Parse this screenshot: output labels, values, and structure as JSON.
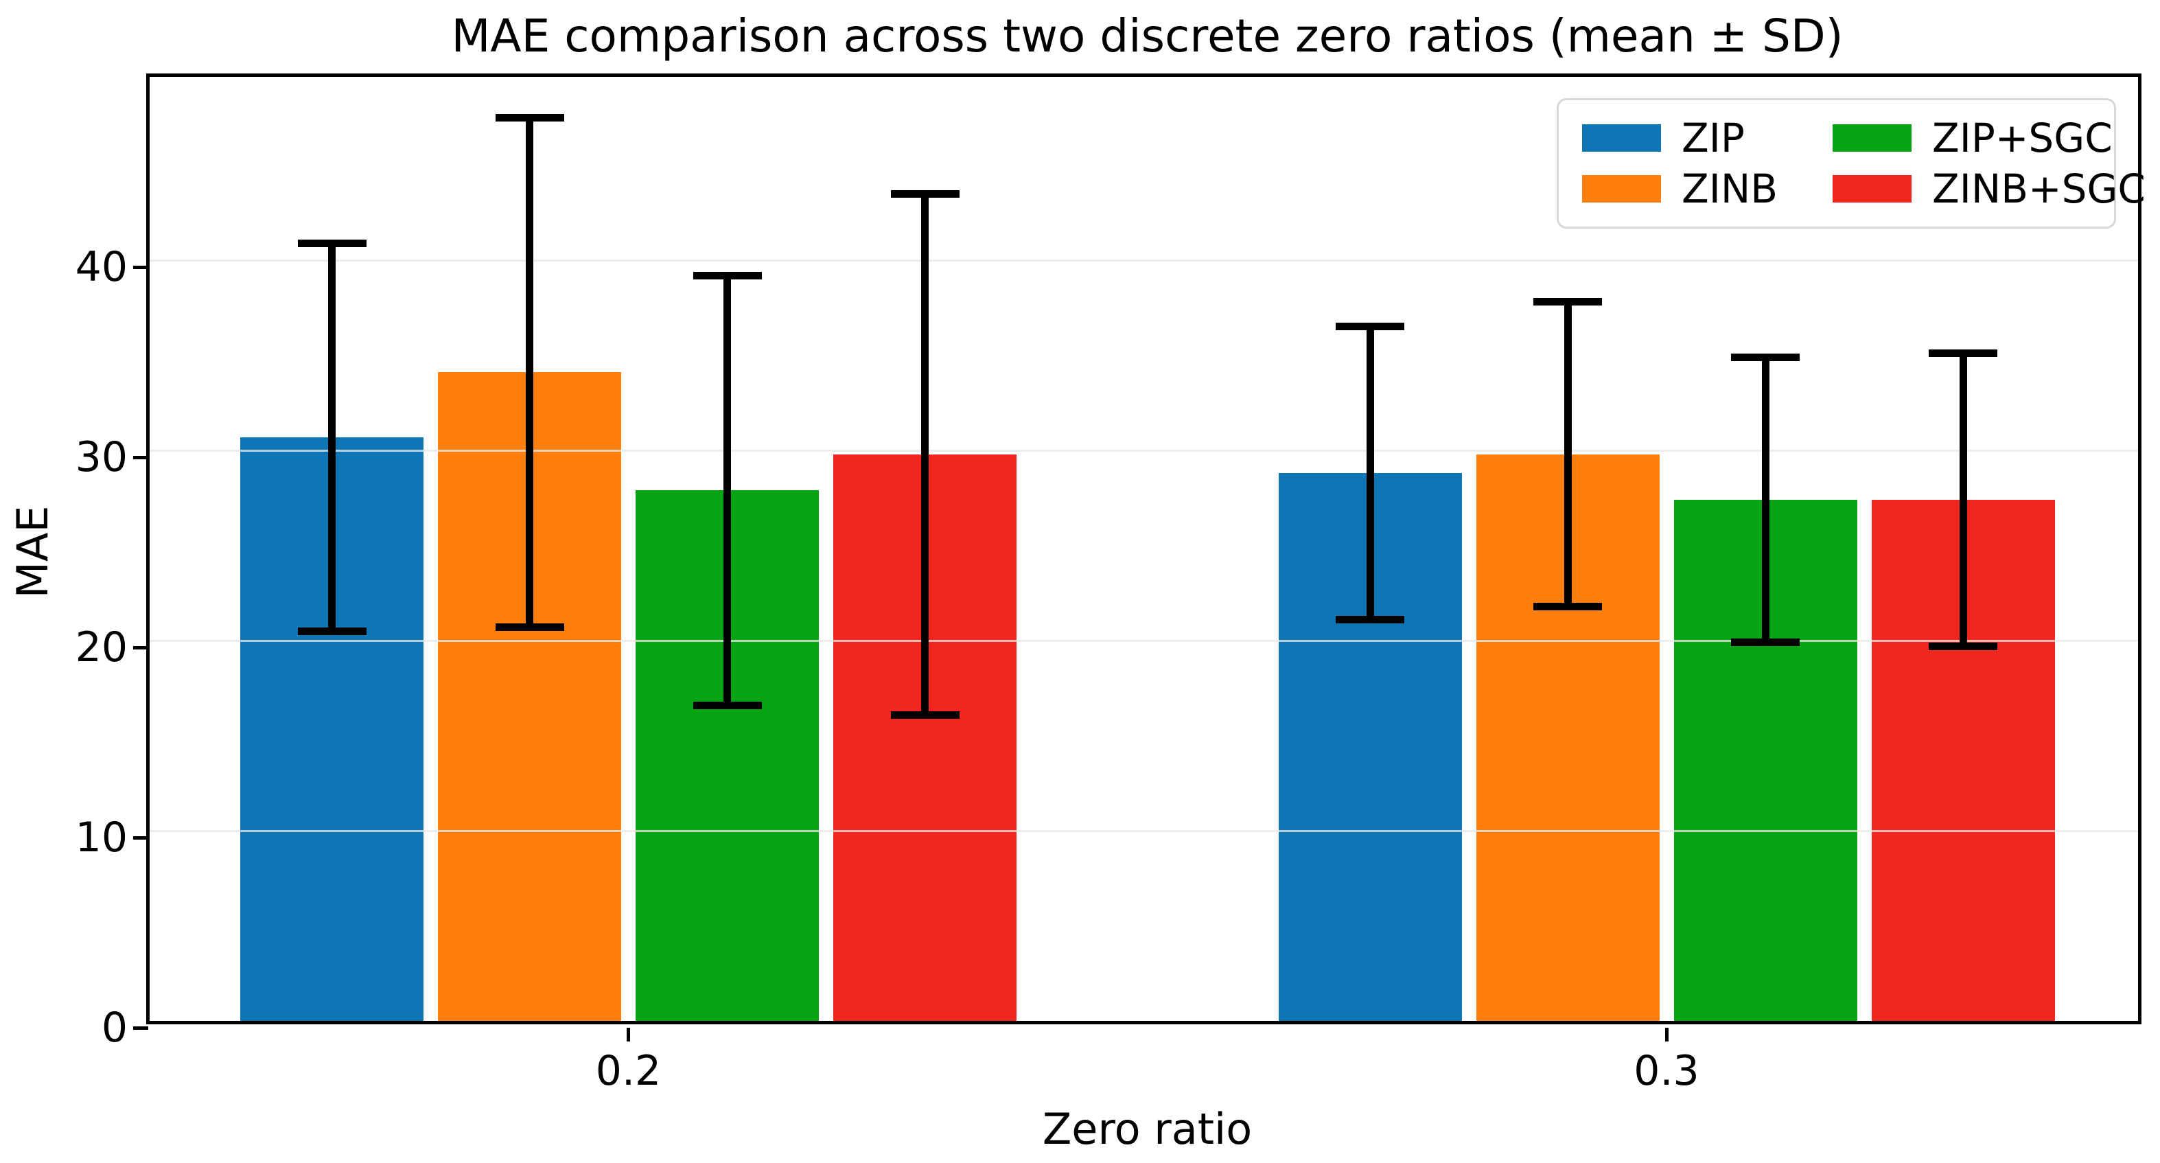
{
  "chart_data": {
    "type": "bar",
    "title": "MAE comparison across two discrete zero ratios (mean ± SD)",
    "xlabel": "Zero ratio",
    "ylabel": "MAE",
    "categories": [
      "0.2",
      "0.3"
    ],
    "series": [
      {
        "name": "ZIP",
        "color": "#0e76b4",
        "values": [
          30.7,
          28.8
        ],
        "sd": [
          10.2,
          7.7
        ]
      },
      {
        "name": "ZINB",
        "color": "#ff7f0e",
        "values": [
          34.1,
          29.8
        ],
        "sd": [
          13.4,
          8.0
        ]
      },
      {
        "name": "ZIP+SGC",
        "color": "#06a413",
        "values": [
          27.9,
          27.4
        ],
        "sd": [
          11.3,
          7.5
        ]
      },
      {
        "name": "ZINB+SGC",
        "color": "#f0261f",
        "values": [
          29.8,
          27.4
        ],
        "sd": [
          13.7,
          7.7
        ]
      }
    ],
    "error_bars": "mean ± SD, black lines with caps",
    "ylim": [
      0,
      50
    ],
    "yticks": [
      0,
      10,
      20,
      30,
      40
    ],
    "grid": "horizontal light-gray lines at y ticks, drawn over bars",
    "legend_position": "upper right",
    "legend_columns": 2,
    "legend_order_column_major": [
      "ZIP",
      "ZINB",
      "ZIP+SGC",
      "ZINB+SGC"
    ],
    "background_color": "#ffffff",
    "axis_color": "#000000"
  }
}
